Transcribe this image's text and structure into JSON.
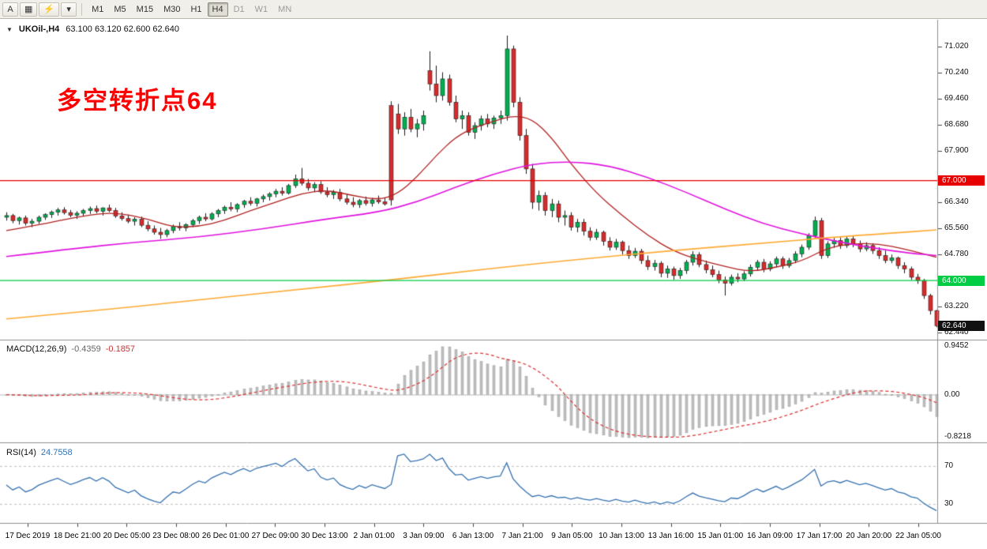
{
  "toolbar": {
    "left_buttons": [
      {
        "name": "cursor-tool",
        "label": "A"
      },
      {
        "name": "chart-window",
        "label": "▦"
      },
      {
        "name": "quick-trade",
        "label": "⚡"
      },
      {
        "name": "tools-dropdown",
        "label": "▾"
      }
    ],
    "timeframes": [
      {
        "label": "M1"
      },
      {
        "label": "M5"
      },
      {
        "label": "M15"
      },
      {
        "label": "M30"
      },
      {
        "label": "H1"
      },
      {
        "label": "H4",
        "state": "active"
      },
      {
        "label": "D1",
        "state": "muted"
      },
      {
        "label": "W1",
        "state": "muted"
      },
      {
        "label": "MN",
        "state": "muted"
      }
    ]
  },
  "chart": {
    "symbol_line": "UKOil-,H4",
    "ohlc_line": "63.100 63.120 62.600 62.640",
    "annotation": "多空转折点64",
    "annotation_color": "#ff0000"
  },
  "chart_data": {
    "type": "candlestick",
    "symbol": "UKOil-",
    "timeframe": "H4",
    "ohlc_display": {
      "open": "63.100",
      "high": "63.120",
      "low": "62.600",
      "close": "62.640"
    },
    "style": {
      "bull": "#00b050",
      "bear": "#d92b2b",
      "wick": "#1a1a1a"
    },
    "y_axis": {
      "ticks": [
        "71.020",
        "70.240",
        "69.460",
        "68.680",
        "67.900",
        "66.340",
        "65.560",
        "64.780",
        "63.220",
        "62.440"
      ]
    },
    "x_axis": {
      "labels": [
        "17 Dec 2019",
        "18 Dec 21:00",
        "20 Dec 05:00",
        "23 Dec 08:00",
        "26 Dec 01:00",
        "27 Dec 09:00",
        "30 Dec 13:00",
        "2 Jan 01:00",
        "3 Jan 09:00",
        "6 Jan 13:00",
        "7 Jan 21:00",
        "9 Jan 05:00",
        "10 Jan 13:00",
        "13 Jan 16:00",
        "15 Jan 01:00",
        "16 Jan 09:00",
        "17 Jan 17:00",
        "20 Jan 20:00",
        "22 Jan 05:00"
      ]
    },
    "overlays": {
      "h_lines": [
        {
          "price": 67.0,
          "label": "67.000",
          "color": "#e60000"
        },
        {
          "price": 64.0,
          "label": "64.000",
          "color": "#00cc44"
        }
      ],
      "current_price": {
        "price": 62.64,
        "label": "62.640",
        "bg": "#111111"
      },
      "moving_averages": [
        {
          "name": "ma-fast",
          "color": "#b22222",
          "width": 1.3,
          "points": [
            [
              0,
              65.5
            ],
            [
              6,
              65.7
            ],
            [
              12,
              65.95
            ],
            [
              17,
              66.05
            ],
            [
              22,
              65.85
            ],
            [
              26,
              65.6
            ],
            [
              30,
              65.62
            ],
            [
              34,
              65.8
            ],
            [
              38,
              66.1
            ],
            [
              42,
              66.35
            ],
            [
              46,
              66.62
            ],
            [
              50,
              66.72
            ],
            [
              54,
              66.55
            ],
            [
              58,
              66.42
            ],
            [
              61,
              66.6
            ],
            [
              64,
              67.1
            ],
            [
              67,
              67.75
            ],
            [
              70,
              68.3
            ],
            [
              73,
              68.6
            ],
            [
              76,
              68.78
            ],
            [
              79,
              68.95
            ],
            [
              82,
              68.85
            ],
            [
              85,
              68.3
            ],
            [
              88,
              67.5
            ],
            [
              92,
              66.62
            ],
            [
              96,
              65.95
            ],
            [
              100,
              65.35
            ],
            [
              104,
              64.88
            ],
            [
              108,
              64.62
            ],
            [
              112,
              64.42
            ],
            [
              116,
              64.26
            ],
            [
              120,
              64.4
            ],
            [
              124,
              64.58
            ],
            [
              128,
              64.98
            ],
            [
              132,
              65.12
            ],
            [
              136,
              65.1
            ],
            [
              140,
              64.95
            ],
            [
              145,
              64.7
            ]
          ]
        },
        {
          "name": "ma-mid",
          "color": "#e014e0",
          "width": 1.6,
          "points": [
            [
              0,
              64.72
            ],
            [
              10,
              64.95
            ],
            [
              20,
              65.15
            ],
            [
              30,
              65.3
            ],
            [
              40,
              65.55
            ],
            [
              50,
              65.85
            ],
            [
              58,
              66.05
            ],
            [
              64,
              66.35
            ],
            [
              70,
              66.8
            ],
            [
              76,
              67.2
            ],
            [
              82,
              67.5
            ],
            [
              88,
              67.58
            ],
            [
              94,
              67.45
            ],
            [
              100,
              67.1
            ],
            [
              106,
              66.65
            ],
            [
              112,
              66.15
            ],
            [
              118,
              65.7
            ],
            [
              124,
              65.4
            ],
            [
              130,
              65.15
            ],
            [
              136,
              64.95
            ],
            [
              141,
              64.82
            ],
            [
              145,
              64.75
            ]
          ]
        },
        {
          "name": "ma-slow",
          "color": "#ffaa33",
          "width": 1.6,
          "points": [
            [
              0,
              62.85
            ],
            [
              15,
              63.12
            ],
            [
              30,
              63.42
            ],
            [
              45,
              63.72
            ],
            [
              60,
              64.02
            ],
            [
              75,
              64.35
            ],
            [
              90,
              64.65
            ],
            [
              105,
              64.92
            ],
            [
              118,
              65.12
            ],
            [
              130,
              65.32
            ],
            [
              138,
              65.42
            ],
            [
              145,
              65.52
            ]
          ]
        }
      ]
    },
    "indicators": {
      "macd": {
        "label": "MACD(12,26,9)",
        "value_main": "-0.4359",
        "value_signal": "-0.1857",
        "params": [
          12,
          26,
          9
        ],
        "axis_labels": [
          "0.9452",
          "0.00",
          "-0.8218"
        ],
        "histogram_color": "#c0c0c0",
        "signal_color": "#dd3333"
      },
      "rsi": {
        "label": "RSI(14)",
        "value": "24.7558",
        "period": 14,
        "levels": [
          "70",
          "30"
        ],
        "color": "#3572b0"
      }
    },
    "candles": [
      [
        65.9,
        66.05,
        65.8,
        65.95
      ],
      [
        65.95,
        66.0,
        65.72,
        65.8
      ],
      [
        65.8,
        65.92,
        65.68,
        65.88
      ],
      [
        65.88,
        65.95,
        65.65,
        65.72
      ],
      [
        65.72,
        65.85,
        65.6,
        65.78
      ],
      [
        65.78,
        65.95,
        65.7,
        65.9
      ],
      [
        65.9,
        66.02,
        65.82,
        65.98
      ],
      [
        65.98,
        66.1,
        65.88,
        66.05
      ],
      [
        66.05,
        66.18,
        65.95,
        66.12
      ],
      [
        66.12,
        66.2,
        65.98,
        66.04
      ],
      [
        66.04,
        66.12,
        65.9,
        65.96
      ],
      [
        65.96,
        66.08,
        65.85,
        66.02
      ],
      [
        66.02,
        66.15,
        65.92,
        66.1
      ],
      [
        66.1,
        66.22,
        66.0,
        66.16
      ],
      [
        66.16,
        66.25,
        66.02,
        66.08
      ],
      [
        66.08,
        66.2,
        65.95,
        66.18
      ],
      [
        66.18,
        66.28,
        66.05,
        66.1
      ],
      [
        66.1,
        66.18,
        65.88,
        65.94
      ],
      [
        65.94,
        66.05,
        65.8,
        65.86
      ],
      [
        65.86,
        65.98,
        65.72,
        65.78
      ],
      [
        65.78,
        65.9,
        65.65,
        65.84
      ],
      [
        65.84,
        65.92,
        65.6,
        65.66
      ],
      [
        65.66,
        65.78,
        65.48,
        65.55
      ],
      [
        65.55,
        65.65,
        65.38,
        65.45
      ],
      [
        65.45,
        65.58,
        65.25,
        65.38
      ],
      [
        65.38,
        65.55,
        65.3,
        65.5
      ],
      [
        65.5,
        65.68,
        65.42,
        65.62
      ],
      [
        65.62,
        65.75,
        65.5,
        65.58
      ],
      [
        65.58,
        65.72,
        65.48,
        65.68
      ],
      [
        65.68,
        65.85,
        65.6,
        65.8
      ],
      [
        65.8,
        65.95,
        65.7,
        65.9
      ],
      [
        65.9,
        66.02,
        65.78,
        65.85
      ],
      [
        65.85,
        66.05,
        65.8,
        66.0
      ],
      [
        66.0,
        66.15,
        65.9,
        66.1
      ],
      [
        66.1,
        66.25,
        66.0,
        66.2
      ],
      [
        66.2,
        66.35,
        66.08,
        66.15
      ],
      [
        66.15,
        66.32,
        66.05,
        66.28
      ],
      [
        66.28,
        66.42,
        66.18,
        66.38
      ],
      [
        66.38,
        66.5,
        66.25,
        66.32
      ],
      [
        66.32,
        66.48,
        66.22,
        66.45
      ],
      [
        66.45,
        66.58,
        66.35,
        66.52
      ],
      [
        66.52,
        66.65,
        66.4,
        66.6
      ],
      [
        66.6,
        66.75,
        66.5,
        66.68
      ],
      [
        66.68,
        66.8,
        66.55,
        66.62
      ],
      [
        66.62,
        66.9,
        66.58,
        66.85
      ],
      [
        66.85,
        67.18,
        66.78,
        67.05
      ],
      [
        67.05,
        67.38,
        66.85,
        66.92
      ],
      [
        66.92,
        67.05,
        66.7,
        66.78
      ],
      [
        66.78,
        66.95,
        66.65,
        66.88
      ],
      [
        66.88,
        66.98,
        66.6,
        66.66
      ],
      [
        66.66,
        66.8,
        66.5,
        66.58
      ],
      [
        66.58,
        66.72,
        66.45,
        66.65
      ],
      [
        66.65,
        66.75,
        66.38,
        66.45
      ],
      [
        66.45,
        66.6,
        66.28,
        66.35
      ],
      [
        66.35,
        66.5,
        66.2,
        66.28
      ],
      [
        66.28,
        66.45,
        66.18,
        66.4
      ],
      [
        66.4,
        66.52,
        66.25,
        66.32
      ],
      [
        66.32,
        66.48,
        66.22,
        66.42
      ],
      [
        66.42,
        66.55,
        66.3,
        66.36
      ],
      [
        66.36,
        66.48,
        66.25,
        66.3
      ],
      [
        69.25,
        69.38,
        66.25,
        66.42
      ],
      [
        69.0,
        69.3,
        68.4,
        68.55
      ],
      [
        68.55,
        69.05,
        68.35,
        68.9
      ],
      [
        68.9,
        69.15,
        68.45,
        68.55
      ],
      [
        68.55,
        68.85,
        68.3,
        68.7
      ],
      [
        68.7,
        69.1,
        68.5,
        68.95
      ],
      [
        70.3,
        70.88,
        69.7,
        69.9
      ],
      [
        69.9,
        70.45,
        69.35,
        69.55
      ],
      [
        69.55,
        70.25,
        69.4,
        70.05
      ],
      [
        70.05,
        70.18,
        69.25,
        69.35
      ],
      [
        69.35,
        69.55,
        68.75,
        68.85
      ],
      [
        68.85,
        69.1,
        68.55,
        68.95
      ],
      [
        68.95,
        69.05,
        68.35,
        68.45
      ],
      [
        68.45,
        68.75,
        68.25,
        68.65
      ],
      [
        68.65,
        68.95,
        68.5,
        68.85
      ],
      [
        68.85,
        69.0,
        68.6,
        68.7
      ],
      [
        68.7,
        68.95,
        68.55,
        68.88
      ],
      [
        68.88,
        69.1,
        68.7,
        68.95
      ],
      [
        68.95,
        71.35,
        68.8,
        70.95
      ],
      [
        70.95,
        71.05,
        69.2,
        69.35
      ],
      [
        69.35,
        69.5,
        68.2,
        68.35
      ],
      [
        68.35,
        68.55,
        67.2,
        67.35
      ],
      [
        67.35,
        67.5,
        66.15,
        66.35
      ],
      [
        66.35,
        66.7,
        66.1,
        66.55
      ],
      [
        66.55,
        66.65,
        65.95,
        66.1
      ],
      [
        66.1,
        66.45,
        65.9,
        66.3
      ],
      [
        66.3,
        66.4,
        65.75,
        65.9
      ],
      [
        65.9,
        66.1,
        65.65,
        65.95
      ],
      [
        65.95,
        66.05,
        65.5,
        65.6
      ],
      [
        65.6,
        65.85,
        65.45,
        65.75
      ],
      [
        65.75,
        65.85,
        65.35,
        65.48
      ],
      [
        65.48,
        65.6,
        65.2,
        65.3
      ],
      [
        65.3,
        65.55,
        65.22,
        65.45
      ],
      [
        65.45,
        65.5,
        65.05,
        65.18
      ],
      [
        65.18,
        65.3,
        64.9,
        65.0
      ],
      [
        65.0,
        65.25,
        64.92,
        65.15
      ],
      [
        65.15,
        65.2,
        64.78,
        64.9
      ],
      [
        64.9,
        65.05,
        64.65,
        64.75
      ],
      [
        64.75,
        64.98,
        64.68,
        64.88
      ],
      [
        64.88,
        64.95,
        64.5,
        64.6
      ],
      [
        64.6,
        64.75,
        64.32,
        64.42
      ],
      [
        64.42,
        64.62,
        64.3,
        64.52
      ],
      [
        64.52,
        64.58,
        64.1,
        64.22
      ],
      [
        64.22,
        64.45,
        64.08,
        64.35
      ],
      [
        64.35,
        64.42,
        64.02,
        64.15
      ],
      [
        64.15,
        64.38,
        64.05,
        64.3
      ],
      [
        64.3,
        64.62,
        64.2,
        64.55
      ],
      [
        64.55,
        64.88,
        64.45,
        64.78
      ],
      [
        64.78,
        64.85,
        64.4,
        64.48
      ],
      [
        64.48,
        64.6,
        64.22,
        64.32
      ],
      [
        64.32,
        64.45,
        64.1,
        64.18
      ],
      [
        64.18,
        64.3,
        63.92,
        64.02
      ],
      [
        64.02,
        64.12,
        63.55,
        63.92
      ],
      [
        63.92,
        64.18,
        63.85,
        64.1
      ],
      [
        64.1,
        64.22,
        63.95,
        64.05
      ],
      [
        64.05,
        64.28,
        63.98,
        64.2
      ],
      [
        64.2,
        64.48,
        64.12,
        64.4
      ],
      [
        64.4,
        64.62,
        64.3,
        64.55
      ],
      [
        64.55,
        64.65,
        64.25,
        64.35
      ],
      [
        64.35,
        64.58,
        64.28,
        64.5
      ],
      [
        64.5,
        64.72,
        64.4,
        64.65
      ],
      [
        64.65,
        64.72,
        64.35,
        64.45
      ],
      [
        64.45,
        64.68,
        64.38,
        64.6
      ],
      [
        64.6,
        64.88,
        64.52,
        64.8
      ],
      [
        64.8,
        65.08,
        64.7,
        65.0
      ],
      [
        65.0,
        65.42,
        64.92,
        65.35
      ],
      [
        65.35,
        65.92,
        65.28,
        65.8
      ],
      [
        65.8,
        65.88,
        64.65,
        64.75
      ],
      [
        64.75,
        65.18,
        64.68,
        65.1
      ],
      [
        65.1,
        65.28,
        64.98,
        65.2
      ],
      [
        65.2,
        65.3,
        64.95,
        65.05
      ],
      [
        65.05,
        65.32,
        64.98,
        65.25
      ],
      [
        65.25,
        65.35,
        65.0,
        65.1
      ],
      [
        65.1,
        65.2,
        64.85,
        64.95
      ],
      [
        64.95,
        65.15,
        64.88,
        65.05
      ],
      [
        65.05,
        65.12,
        64.8,
        64.9
      ],
      [
        64.9,
        65.0,
        64.65,
        64.75
      ],
      [
        64.75,
        64.9,
        64.52,
        64.6
      ],
      [
        64.6,
        64.78,
        64.52,
        64.68
      ],
      [
        64.68,
        64.72,
        64.35,
        64.45
      ],
      [
        64.45,
        64.55,
        64.22,
        64.35
      ],
      [
        64.35,
        64.42,
        64.02,
        64.1
      ],
      [
        64.1,
        64.2,
        63.9,
        64.0
      ],
      [
        64.0,
        64.05,
        63.45,
        63.55
      ],
      [
        63.55,
        63.6,
        62.98,
        63.1
      ],
      [
        63.1,
        63.12,
        62.6,
        62.64
      ]
    ]
  }
}
